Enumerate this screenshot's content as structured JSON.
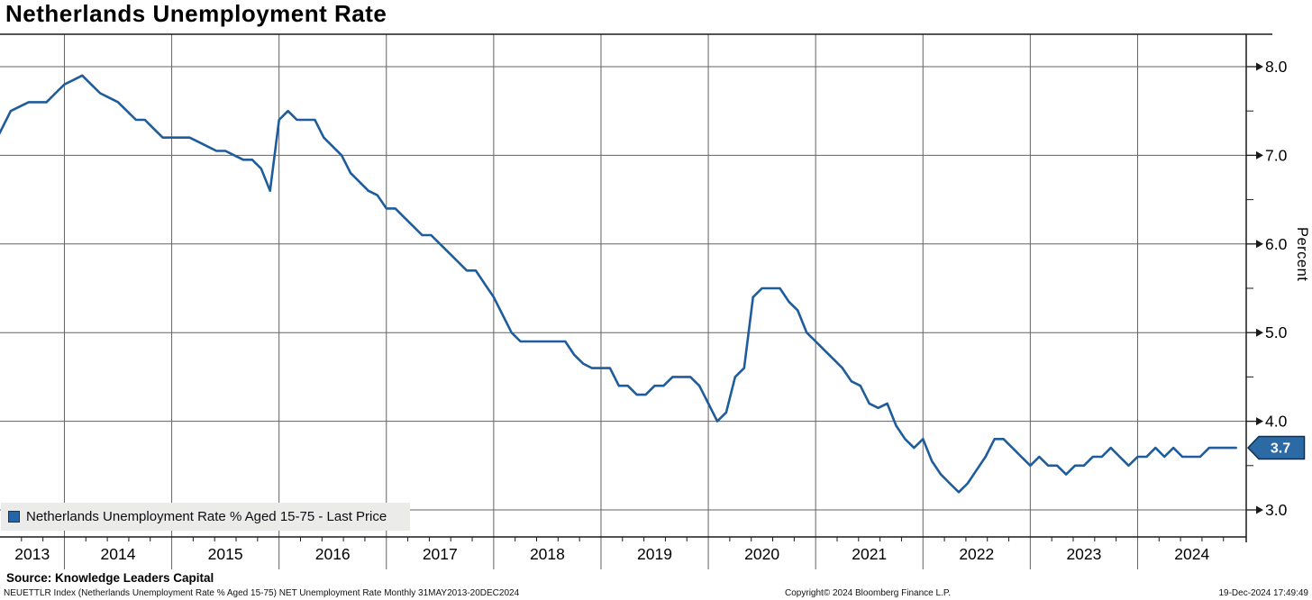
{
  "header": {
    "title": "Netherlands Unemployment Rate"
  },
  "legend": {
    "marker_color": "#2565a8",
    "label": "Netherlands Unemployment Rate % Aged 15-75 - Last Price"
  },
  "last_price": {
    "value": "3.7",
    "badge_color": "#2c6aa6",
    "badge_border": "#0e2f52"
  },
  "axis_right": {
    "title": "Percent",
    "major_tick_labels": [
      "8.0",
      "7.0",
      "6.0",
      "5.0",
      "4.0",
      "3.0"
    ],
    "minor_ticks": [
      7.5,
      6.5,
      5.5,
      4.5,
      3.5
    ]
  },
  "axis_x": {
    "years": [
      "2013",
      "2014",
      "2015",
      "2016",
      "2017",
      "2018",
      "2019",
      "2020",
      "2021",
      "2022",
      "2023",
      "2024"
    ]
  },
  "footer": {
    "source": "Source: Knowledge Leaders Capital",
    "description": "NEUETTLR Index (Netherlands Unemployment Rate % Aged 15-75) NET Unemployment Rate  Monthly 31MAY2013-20DEC2024",
    "copyright": "Copyright© 2024 Bloomberg Finance L.P.",
    "timestamp": "19-Dec-2024 17:49:49"
  },
  "colors": {
    "line": "#1e5c9b",
    "grid": "#636363",
    "axis": "#1a1a1a",
    "legend_bg": "#ebebe9"
  },
  "chart_data": {
    "type": "line",
    "title": "Netherlands Unemployment Rate",
    "series_name": "Netherlands Unemployment Rate % Aged 15-75 - Last Price",
    "frequency": "monthly",
    "start_month": "2013-05",
    "end_month": "2024-12",
    "xlabel": "",
    "ylabel": "Percent",
    "ylim": [
      2.7,
      8.37
    ],
    "grid": true,
    "legend_position": "bottom-left",
    "y_major": [
      8.0,
      7.0,
      6.0,
      5.0,
      4.0,
      3.0
    ],
    "last_price": 3.7,
    "values": [
      7.1,
      7.3,
      7.5,
      7.55,
      7.6,
      7.6,
      7.6,
      7.7,
      7.8,
      7.85,
      7.9,
      7.8,
      7.7,
      7.65,
      7.6,
      7.5,
      7.4,
      7.4,
      7.3,
      7.2,
      7.2,
      7.2,
      7.2,
      7.15,
      7.1,
      7.05,
      7.05,
      7.0,
      6.95,
      6.95,
      6.85,
      6.6,
      7.4,
      7.5,
      7.4,
      7.4,
      7.4,
      7.2,
      7.1,
      7.0,
      6.8,
      6.7,
      6.6,
      6.55,
      6.4,
      6.4,
      6.3,
      6.2,
      6.1,
      6.1,
      6.0,
      5.9,
      5.8,
      5.7,
      5.7,
      5.55,
      5.4,
      5.2,
      5.0,
      4.9,
      4.9,
      4.9,
      4.9,
      4.9,
      4.9,
      4.75,
      4.65,
      4.6,
      4.6,
      4.6,
      4.4,
      4.4,
      4.3,
      4.3,
      4.4,
      4.4,
      4.5,
      4.5,
      4.5,
      4.4,
      4.2,
      4.0,
      4.1,
      4.5,
      4.6,
      5.4,
      5.5,
      5.5,
      5.5,
      5.35,
      5.25,
      5.0,
      4.9,
      4.8,
      4.7,
      4.6,
      4.45,
      4.4,
      4.2,
      4.15,
      4.2,
      3.95,
      3.8,
      3.7,
      3.8,
      3.55,
      3.4,
      3.3,
      3.2,
      3.3,
      3.45,
      3.6,
      3.8,
      3.8,
      3.7,
      3.6,
      3.5,
      3.6,
      3.5,
      3.5,
      3.4,
      3.5,
      3.5,
      3.6,
      3.6,
      3.7,
      3.6,
      3.5,
      3.6,
      3.6,
      3.7,
      3.6,
      3.7,
      3.6,
      3.6,
      3.6,
      3.7,
      3.7,
      3.7,
      3.7
    ]
  }
}
